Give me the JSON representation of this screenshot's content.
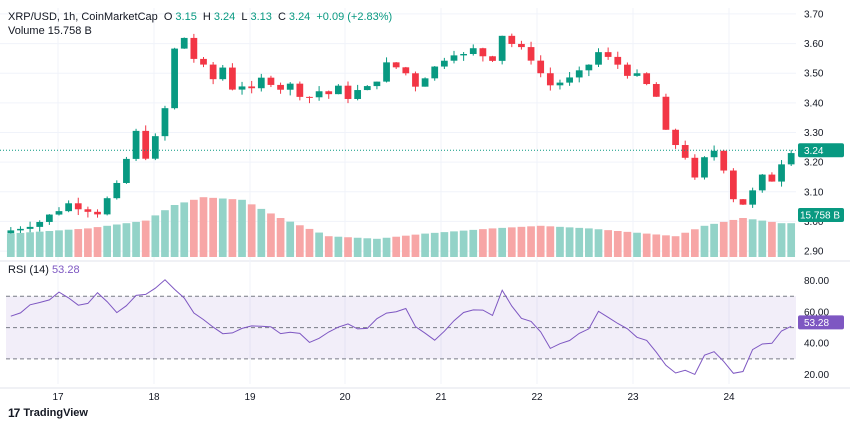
{
  "header": {
    "symbol": "XRP/USD, 1h, CoinMarketCap",
    "o_label": "O",
    "o": "3.15",
    "h_label": "H",
    "h": "3.24",
    "l_label": "L",
    "l": "3.13",
    "c_label": "C",
    "c": "3.24",
    "change": "+0.09 (+2.83%)",
    "volume_label": "Volume",
    "volume": "15.758 B",
    "rsi_label": "RSI (14)",
    "rsi": "53.28"
  },
  "branding": {
    "name": "TradingView",
    "logo_mark": "17"
  },
  "colors": {
    "up": "#089981",
    "down": "#f23645",
    "vol_up": "#93d3c8",
    "vol_down": "#f7a6a6",
    "rsi": "#7e57c2",
    "grid": "#f0f3fa"
  },
  "chart_data": [
    {
      "type": "candlestick",
      "title": "XRP/USD, 1h, CoinMarketCap",
      "x_tick_labels": [
        "17",
        "18",
        "19",
        "20",
        "21",
        "22",
        "23",
        "24"
      ],
      "y_tick_labels": [
        "2.90",
        "3.00",
        "3.10",
        "3.20",
        "3.30",
        "3.40",
        "3.50",
        "3.60",
        "3.70"
      ],
      "ylim": [
        2.88,
        3.72
      ],
      "last_price": "3.24",
      "last_volume": "15.758 B",
      "close_path": [
        [
          0,
          2.97
        ],
        [
          3,
          3.0
        ],
        [
          6,
          3.06
        ],
        [
          9,
          3.03
        ],
        [
          11,
          3.12
        ],
        [
          13,
          3.3
        ],
        [
          14,
          3.22
        ],
        [
          15,
          3.28
        ],
        [
          16,
          3.38
        ],
        [
          17,
          3.58
        ],
        [
          18,
          3.62
        ],
        [
          19,
          3.55
        ],
        [
          20,
          3.52
        ],
        [
          21,
          3.48
        ],
        [
          22,
          3.52
        ],
        [
          23,
          3.45
        ],
        [
          24,
          3.46
        ],
        [
          25,
          3.44
        ],
        [
          26,
          3.48
        ],
        [
          27,
          3.47
        ],
        [
          28,
          3.45
        ],
        [
          29,
          3.46
        ],
        [
          30,
          3.43
        ],
        [
          31,
          3.42
        ],
        [
          32,
          3.44
        ],
        [
          33,
          3.43
        ],
        [
          34,
          3.45
        ],
        [
          35,
          3.42
        ],
        [
          36,
          3.44
        ],
        [
          37,
          3.45
        ],
        [
          38,
          3.48
        ],
        [
          39,
          3.53
        ],
        [
          40,
          3.52
        ],
        [
          41,
          3.5
        ],
        [
          42,
          3.46
        ],
        [
          43,
          3.49
        ],
        [
          44,
          3.52
        ],
        [
          45,
          3.55
        ],
        [
          46,
          3.57
        ],
        [
          47,
          3.56
        ],
        [
          48,
          3.58
        ],
        [
          49,
          3.56
        ],
        [
          50,
          3.55
        ],
        [
          51,
          3.63
        ],
        [
          52,
          3.6
        ],
        [
          53,
          3.58
        ],
        [
          54,
          3.55
        ],
        [
          55,
          3.5
        ],
        [
          56,
          3.46
        ],
        [
          57,
          3.47
        ],
        [
          58,
          3.48
        ],
        [
          59,
          3.5
        ],
        [
          60,
          3.53
        ],
        [
          61,
          3.57
        ],
        [
          62,
          3.55
        ],
        [
          63,
          3.53
        ],
        [
          64,
          3.5
        ],
        [
          65,
          3.49
        ],
        [
          66,
          3.46
        ],
        [
          67,
          3.42
        ],
        [
          68,
          3.3
        ],
        [
          69,
          3.26
        ],
        [
          70,
          3.22
        ],
        [
          71,
          3.14
        ],
        [
          72,
          3.21
        ],
        [
          73,
          3.24
        ],
        [
          74,
          3.18
        ],
        [
          75,
          3.08
        ],
        [
          76,
          3.06
        ],
        [
          77,
          3.1
        ],
        [
          78,
          3.15
        ],
        [
          79,
          3.14
        ],
        [
          80,
          3.2
        ],
        [
          81,
          3.24
        ]
      ],
      "volume_profile": [
        [
          0,
          0.9
        ],
        [
          8,
          1.1
        ],
        [
          14,
          1.4
        ],
        [
          17,
          2.0
        ],
        [
          20,
          2.3
        ],
        [
          24,
          2.2
        ],
        [
          28,
          1.5
        ],
        [
          33,
          0.8
        ],
        [
          38,
          0.7
        ],
        [
          43,
          0.9
        ],
        [
          50,
          1.1
        ],
        [
          55,
          1.2
        ],
        [
          60,
          1.1
        ],
        [
          66,
          0.9
        ],
        [
          69,
          0.8
        ],
        [
          72,
          1.2
        ],
        [
          76,
          1.5
        ],
        [
          80,
          1.3
        ]
      ]
    },
    {
      "type": "line",
      "title": "RSI (14)",
      "y_tick_labels": [
        "20.00",
        "40.00",
        "60.00",
        "80.00"
      ],
      "ylim": [
        14,
        88
      ],
      "bands": [
        30,
        50,
        70
      ],
      "last_value": "53.28",
      "rsi_path": [
        [
          0,
          58
        ],
        [
          3,
          66
        ],
        [
          5,
          72
        ],
        [
          7,
          62
        ],
        [
          9,
          70
        ],
        [
          11,
          60
        ],
        [
          13,
          72
        ],
        [
          15,
          74
        ],
        [
          16,
          80
        ],
        [
          17,
          72
        ],
        [
          18,
          70
        ],
        [
          19,
          60
        ],
        [
          21,
          52
        ],
        [
          22,
          44
        ],
        [
          24,
          48
        ],
        [
          26,
          52
        ],
        [
          28,
          48
        ],
        [
          30,
          44
        ],
        [
          31,
          40
        ],
        [
          33,
          48
        ],
        [
          35,
          52
        ],
        [
          37,
          50
        ],
        [
          39,
          58
        ],
        [
          41,
          62
        ],
        [
          42,
          50
        ],
        [
          44,
          44
        ],
        [
          46,
          55
        ],
        [
          48,
          60
        ],
        [
          50,
          58
        ],
        [
          51,
          72
        ],
        [
          52,
          64
        ],
        [
          53,
          58
        ],
        [
          54,
          52
        ],
        [
          55,
          48
        ],
        [
          56,
          38
        ],
        [
          58,
          44
        ],
        [
          60,
          50
        ],
        [
          61,
          58
        ],
        [
          63,
          52
        ],
        [
          65,
          46
        ],
        [
          66,
          42
        ],
        [
          67,
          36
        ],
        [
          68,
          26
        ],
        [
          69,
          22
        ],
        [
          70,
          24
        ],
        [
          71,
          20
        ],
        [
          72,
          32
        ],
        [
          73,
          36
        ],
        [
          74,
          28
        ],
        [
          75,
          20
        ],
        [
          76,
          22
        ],
        [
          77,
          38
        ],
        [
          78,
          42
        ],
        [
          79,
          40
        ],
        [
          80,
          48
        ],
        [
          81,
          53.28
        ]
      ]
    }
  ]
}
